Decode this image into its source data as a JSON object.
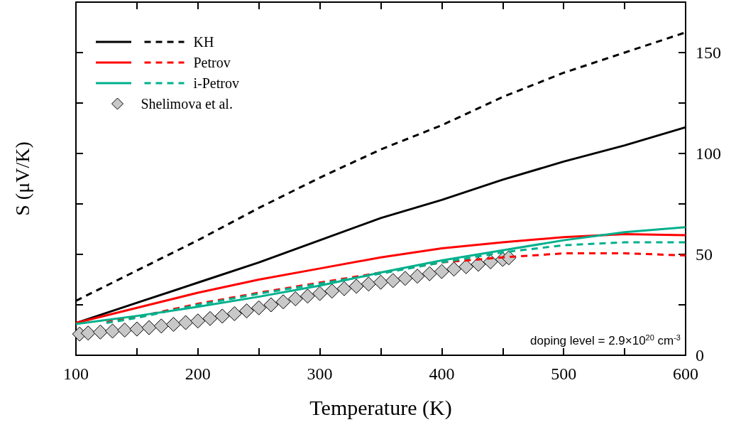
{
  "chart_data": {
    "type": "line",
    "xlabel": "Temperature (K)",
    "ylabel": "S (μV/K)",
    "xlim": [
      100,
      600
    ],
    "xticks": [
      100,
      {
        "value": 150,
        "label": null
      },
      200,
      {
        "value": 250,
        "label": null
      },
      300,
      {
        "value": 350,
        "label": null
      },
      400,
      {
        "value": 450,
        "label": null
      },
      500,
      {
        "value": 550,
        "label": null
      },
      600
    ],
    "ylim": [
      0,
      175
    ],
    "yticks": [
      0,
      {
        "value": 25,
        "label": null
      },
      50,
      {
        "value": 75,
        "label": null
      },
      100,
      {
        "value": 125,
        "label": null
      },
      150
    ],
    "grid": false,
    "legend": "top left",
    "marker": "none",
    "annotations": [
      "doping level = 2.9×10$^{20}$ cm$^{-3}$"
    ],
    "series": [
      {
        "color": "#000000",
        "line_style": "solid",
        "x": [
          100,
          150,
          200,
          250,
          300,
          350,
          400,
          450,
          500,
          550,
          600
        ],
        "values": [
          16,
          26,
          36,
          46,
          57,
          68,
          77,
          87,
          96,
          104,
          113
        ]
      },
      {
        "name": "KH",
        "color": "#000000",
        "line_style": "dashed",
        "x": [
          100,
          150,
          200,
          250,
          300,
          350,
          400,
          450,
          500,
          550,
          600
        ],
        "values": [
          27,
          42,
          57,
          73,
          88,
          102,
          114,
          128,
          140,
          150,
          160
        ]
      },
      {
        "color": "#ff0000",
        "line_style": "solid",
        "x": [
          100,
          150,
          200,
          250,
          300,
          350,
          400,
          450,
          500,
          550,
          600
        ],
        "values": [
          16,
          23.5,
          31,
          37.5,
          43,
          48.5,
          53,
          56,
          58.5,
          60,
          59.5
        ]
      },
      {
        "name": "Petrov",
        "color": "#ff0000",
        "line_style": "dashed",
        "x": [
          125,
          150,
          200,
          250,
          300,
          350,
          400,
          450,
          500,
          550,
          600
        ],
        "values": [
          16.5,
          19,
          25.5,
          31,
          36,
          41,
          46,
          48.5,
          50.5,
          50.5,
          49.5
        ]
      },
      {
        "color": "#00b08c",
        "line_style": "solid",
        "x": [
          100,
          150,
          200,
          250,
          300,
          350,
          400,
          450,
          500,
          550,
          600
        ],
        "values": [
          15.5,
          19.5,
          24,
          29,
          34.5,
          41,
          47,
          52,
          57,
          61,
          63.5
        ]
      },
      {
        "name": "i-Petrov",
        "color": "#00b08c",
        "line_style": "dashed",
        "x": [
          125,
          150,
          200,
          250,
          300,
          350,
          400,
          450,
          500,
          550,
          600
        ],
        "values": [
          16,
          18.5,
          25,
          30.5,
          35.5,
          40.5,
          46,
          51,
          54.5,
          56,
          56
        ]
      },
      {
        "type": "scatter",
        "name": "Shelimova et al.",
        "color": "#c8c8c8",
        "marker": "diamond",
        "x": [
          103,
          110,
          120,
          130,
          140,
          150,
          160,
          170,
          180,
          190,
          200,
          210,
          220,
          230,
          240,
          250,
          260,
          270,
          280,
          290,
          300,
          310,
          320,
          330,
          340,
          350,
          360,
          370,
          380,
          390,
          400,
          410,
          420,
          430,
          440,
          450,
          455
        ],
        "values": [
          10.5,
          11,
          11.5,
          12,
          12.5,
          13,
          13.7,
          14.5,
          15.3,
          16.2,
          17,
          18.2,
          19.4,
          20.6,
          22,
          23.5,
          25,
          26.5,
          28,
          29.3,
          30.6,
          31.8,
          33,
          34.2,
          35.3,
          36.2,
          37,
          38.1,
          39.2,
          40.4,
          41.5,
          42.7,
          43.9,
          45.1,
          46.3,
          47.5,
          48.3
        ]
      }
    ]
  }
}
